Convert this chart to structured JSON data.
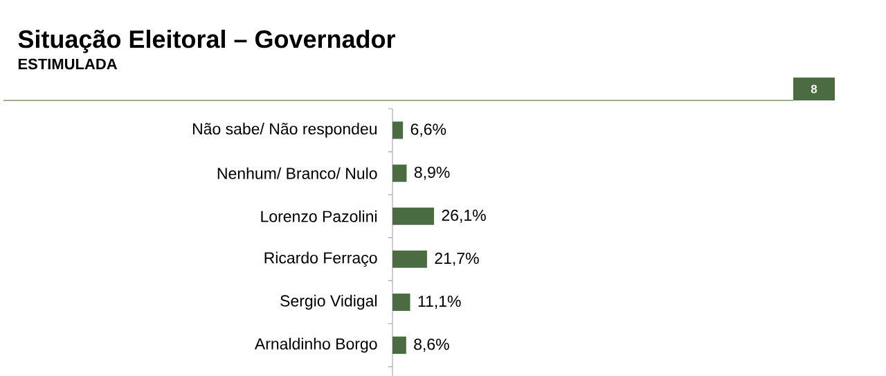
{
  "chart_data": {
    "type": "bar",
    "orientation": "horizontal",
    "title": "Situação Eleitoral – Governador",
    "subtitle": "ESTIMULADA",
    "categories": [
      "Não sabe/ Não respondeu",
      "Nenhum/ Branco/ Nulo",
      "Lorenzo Pazolini",
      "Ricardo Ferraço",
      "Sergio Vidigal",
      "Arnaldinho Borgo"
    ],
    "values": [
      6.6,
      8.9,
      26.1,
      21.7,
      11.1,
      8.6
    ],
    "value_labels": [
      "6,6%",
      "8,9%",
      "26,1%",
      "21,7%",
      "11,1%",
      "8,6%"
    ],
    "color": "#4b6b43",
    "tick_labels": "y",
    "annotations": [
      "8"
    ]
  }
}
